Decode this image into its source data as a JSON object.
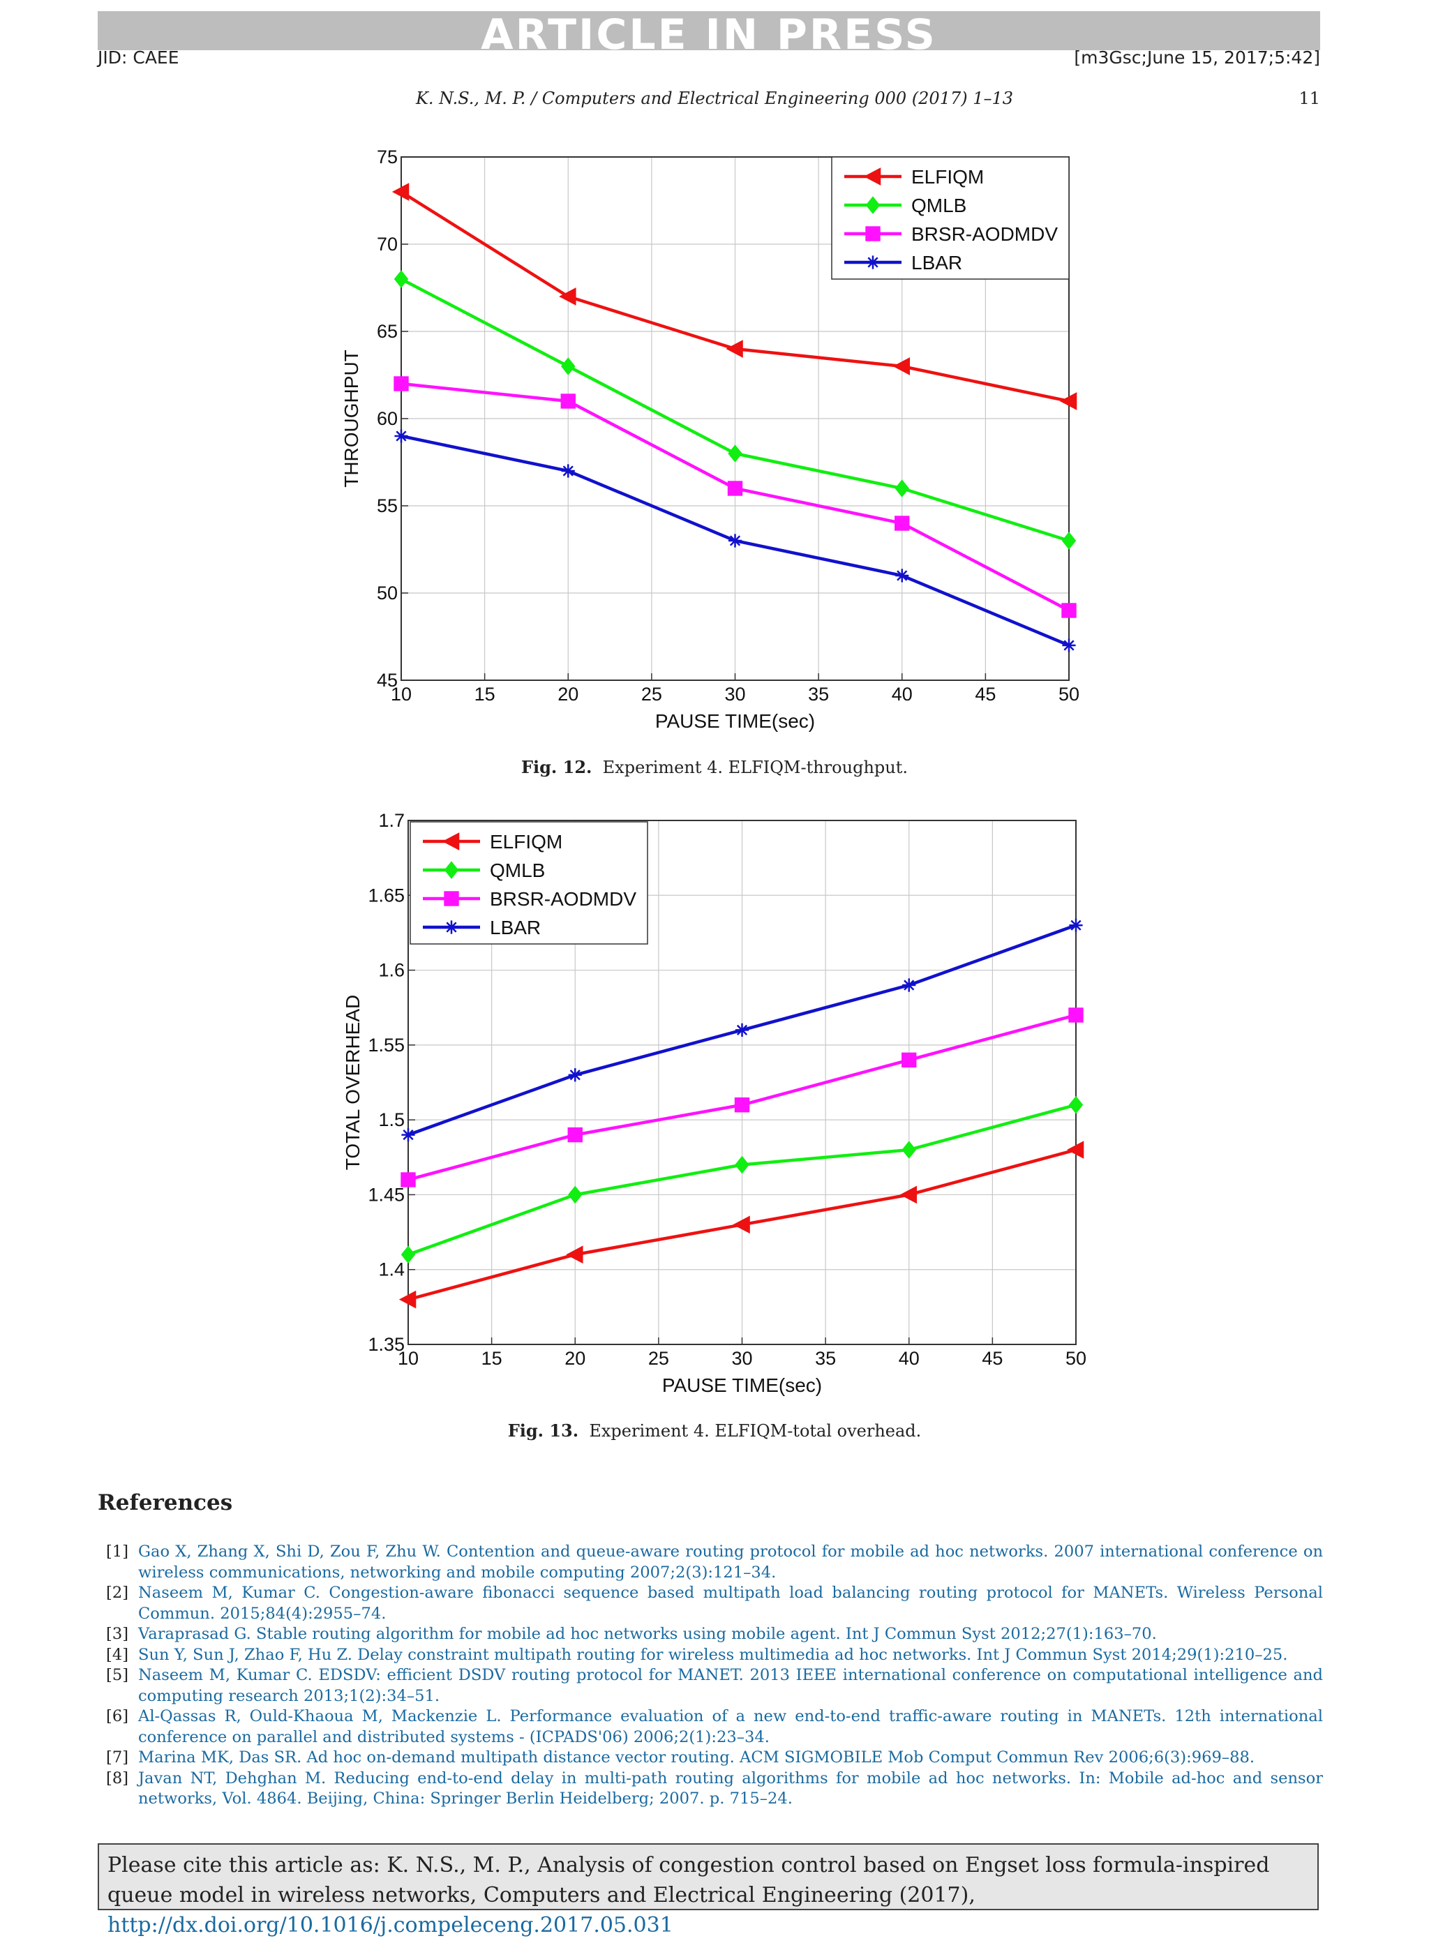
{
  "header": {
    "banner": "ARTICLE IN PRESS",
    "jid": "JID: CAEE",
    "stamp": "[m3Gsc;June 15, 2017;5:42]",
    "running_head": "K. N.S., M. P. / Computers and Electrical Engineering 000 (2017) 1–13",
    "page_number": "11"
  },
  "figures": [
    {
      "caption_label": "Fig. 12.",
      "caption_text": "Experiment 4. ELFIQM-throughput."
    },
    {
      "caption_label": "Fig. 13.",
      "caption_text": "Experiment 4. ELFIQM-total overhead."
    }
  ],
  "chart_data": [
    {
      "type": "line",
      "title": "",
      "xlabel": "PAUSE TIME(sec)",
      "ylabel": "THROUGHPUT",
      "xlim": [
        10,
        50
      ],
      "ylim": [
        45,
        75
      ],
      "xticks": [
        10,
        15,
        20,
        25,
        30,
        35,
        40,
        45,
        50
      ],
      "yticks": [
        45,
        50,
        55,
        60,
        65,
        70,
        75
      ],
      "ytick_labels": [
        "45",
        "50",
        "55",
        "60",
        "65",
        "70",
        "75"
      ],
      "grid": true,
      "legend_position": "top-right",
      "x": [
        10,
        20,
        30,
        40,
        50
      ],
      "series": [
        {
          "name": "ELFIQM",
          "color": "#ee1111",
          "marker": "triangle-left",
          "values": [
            73,
            67,
            64,
            63,
            61
          ]
        },
        {
          "name": "QMLB",
          "color": "#11ee11",
          "marker": "diamond",
          "values": [
            68,
            63,
            58,
            56,
            53
          ]
        },
        {
          "name": "BRSR-AODMDV",
          "color": "#ff11ff",
          "marker": "square",
          "values": [
            62,
            61,
            56,
            54,
            49
          ]
        },
        {
          "name": "LBAR",
          "color": "#1111cc",
          "marker": "star",
          "values": [
            59,
            57,
            53,
            51,
            47
          ]
        }
      ]
    },
    {
      "type": "line",
      "title": "",
      "xlabel": "PAUSE TIME(sec)",
      "ylabel": "TOTAL OVERHEAD",
      "xlim": [
        10,
        50
      ],
      "ylim": [
        1.35,
        1.7
      ],
      "xticks": [
        10,
        15,
        20,
        25,
        30,
        35,
        40,
        45,
        50
      ],
      "yticks": [
        1.35,
        1.4,
        1.45,
        1.5,
        1.55,
        1.6,
        1.65,
        1.7
      ],
      "ytick_labels": [
        "1.35",
        "1.4",
        "1.45",
        "1.5",
        "1.55",
        "1.6",
        "1.65",
        "1.7"
      ],
      "grid": true,
      "legend_position": "top-left",
      "x": [
        10,
        20,
        30,
        40,
        50
      ],
      "series": [
        {
          "name": "ELFIQM",
          "color": "#ee1111",
          "marker": "triangle-left",
          "values": [
            1.38,
            1.41,
            1.43,
            1.45,
            1.48
          ]
        },
        {
          "name": "QMLB",
          "color": "#11ee11",
          "marker": "diamond",
          "values": [
            1.41,
            1.45,
            1.47,
            1.48,
            1.51
          ]
        },
        {
          "name": "BRSR-AODMDV",
          "color": "#ff11ff",
          "marker": "square",
          "values": [
            1.46,
            1.49,
            1.51,
            1.54,
            1.57
          ]
        },
        {
          "name": "LBAR",
          "color": "#1111cc",
          "marker": "star",
          "values": [
            1.49,
            1.53,
            1.56,
            1.59,
            1.63
          ]
        }
      ]
    }
  ],
  "references": {
    "heading": "References",
    "items": [
      {
        "num": "[1]",
        "text": "Gao X, Zhang X, Shi D, Zou F, Zhu W. Contention and queue-aware routing protocol for mobile ad hoc networks. 2007 international conference on wireless communications, networking and mobile computing 2007;2(3):121–34."
      },
      {
        "num": "[2]",
        "text": "Naseem M, Kumar C. Congestion-aware fibonacci sequence based multipath load balancing routing protocol for MANETs. Wireless Personal Commun. 2015;84(4):2955–74."
      },
      {
        "num": "[3]",
        "text": "Varaprasad G. Stable routing algorithm for mobile ad hoc networks using mobile agent. Int J Commun Syst 2012;27(1):163–70."
      },
      {
        "num": "[4]",
        "text": "Sun Y, Sun J, Zhao F, Hu Z. Delay constraint multipath routing for wireless multimedia ad hoc networks. Int J Commun Syst 2014;29(1):210–25."
      },
      {
        "num": "[5]",
        "text": "Naseem M, Kumar C. EDSDV: efficient DSDV routing protocol for MANET. 2013 IEEE international conference on computational intelligence and computing research 2013;1(2):34–51."
      },
      {
        "num": "[6]",
        "text": "Al-Qassas R, Ould-Khaoua M, Mackenzie L. Performance evaluation of a new end-to-end traffic-aware routing in MANETs. 12th international conference on parallel and distributed systems - (ICPADS'06) 2006;2(1):23–34."
      },
      {
        "num": "[7]",
        "text": "Marina MK, Das SR. Ad hoc on-demand multipath distance vector routing. ACM SIGMOBILE Mob Comput Commun Rev 2006;6(3):969–88."
      },
      {
        "num": "[8]",
        "text": "Javan NT, Dehghan M. Reducing end-to-end delay in multi-path routing algorithms for mobile ad hoc networks. In: Mobile ad-hoc and sensor networks, Vol. 4864. Beijing, China: Springer Berlin Heidelberg; 2007. p. 715–24."
      }
    ]
  },
  "citation": {
    "text": "Please cite this article as: K. N.S., M. P., Analysis of congestion control based on Engset loss formula-inspired queue model in wireless networks, Computers and Electrical Engineering (2017),",
    "doi": "http://dx.doi.org/10.1016/j.compeleceng.2017.05.031"
  }
}
